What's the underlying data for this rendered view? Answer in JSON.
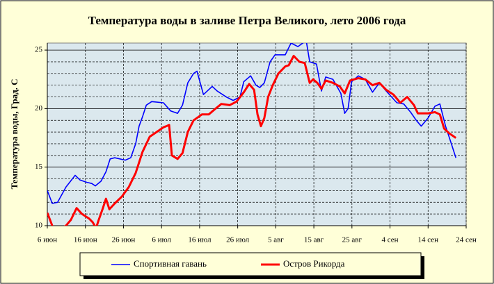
{
  "chart_data": {
    "type": "line",
    "title": "Температура воды в заливе Петра Великого,  лето 2006 года",
    "y_label": "Температура воды, Град. С",
    "xlim": [
      0,
      110
    ],
    "xticks": [
      {
        "value": 0,
        "label": "6 июн"
      },
      {
        "value": 10,
        "label": "16 июн"
      },
      {
        "value": 20,
        "label": "26 июн"
      },
      {
        "value": 30,
        "label": "6 июл"
      },
      {
        "value": 40,
        "label": "16 июл"
      },
      {
        "value": 50,
        "label": "26 июл"
      },
      {
        "value": 60,
        "label": "5 авг"
      },
      {
        "value": 70,
        "label": "15 авг"
      },
      {
        "value": 80,
        "label": "25 авг"
      },
      {
        "value": 90,
        "label": "4 сен"
      },
      {
        "value": 100,
        "label": "14 сен"
      },
      {
        "value": 110,
        "label": "24 сен"
      }
    ],
    "ylim": [
      10,
      25.6
    ],
    "yticks": [
      10,
      15,
      20,
      25
    ],
    "minor_yticks": [
      11,
      12,
      13,
      14,
      16,
      17,
      18,
      19,
      21,
      22,
      23,
      24
    ],
    "grid": true,
    "legend": "bottom",
    "series": [
      {
        "name": "Спортивная гавань",
        "color": "#0000ff",
        "x": [
          0,
          1.3,
          2.7,
          4.9,
          7.3,
          8.6,
          10.4,
          11.7,
          12.6,
          14.1,
          15.4,
          16.5,
          17.7,
          20.5,
          21.9,
          23.2,
          24.1,
          25.0,
          26.0,
          27.4,
          30.5,
          32.4,
          34.2,
          35.5,
          36.9,
          38.4,
          39.3,
          41.0,
          42.0,
          43.3,
          44.6,
          47.0,
          48.8,
          50.6,
          51.6,
          53.4,
          54.8,
          55.8,
          57.0,
          58.5,
          59.8,
          62.5,
          64.0,
          65.8,
          68.0,
          68.9,
          70.7,
          72.0,
          73.1,
          75.0,
          77.1,
          78.1,
          79.0,
          79.9,
          81.7,
          83.5,
          85.4,
          87.2,
          89.0,
          91.8,
          93.6,
          95.4,
          96.9,
          98.2,
          100.0,
          101.8,
          103.1,
          104.6,
          106.1,
          107.3
        ],
        "values": [
          13.0,
          11.9,
          12.0,
          13.3,
          14.3,
          13.9,
          13.7,
          13.6,
          13.4,
          13.8,
          14.6,
          15.7,
          15.8,
          15.6,
          15.8,
          17.0,
          18.5,
          19.3,
          20.3,
          20.6,
          20.5,
          19.8,
          19.6,
          20.3,
          22.2,
          23.0,
          23.2,
          21.2,
          21.5,
          21.9,
          21.5,
          21.0,
          20.7,
          21.0,
          22.3,
          22.8,
          22.0,
          21.8,
          22.2,
          24.0,
          24.6,
          24.6,
          25.6,
          25.3,
          25.8,
          24.0,
          23.8,
          21.5,
          22.7,
          22.5,
          21.3,
          19.6,
          20.0,
          22.3,
          22.8,
          22.5,
          21.4,
          22.2,
          21.5,
          20.5,
          20.4,
          19.7,
          19.0,
          18.5,
          19.2,
          20.2,
          20.4,
          18.5,
          17.0,
          15.8
        ]
      },
      {
        "name": "Остров Рикорда",
        "color": "#ff0000",
        "x": [
          0,
          1.3,
          2.2,
          4.9,
          6.2,
          7.7,
          9.1,
          11.0,
          11.9,
          12.8,
          13.5,
          14.6,
          15.4,
          16.3,
          17.7,
          19.6,
          21.4,
          23.2,
          25.0,
          26.9,
          28.7,
          30.5,
          32.0,
          32.7,
          34.2,
          35.5,
          36.9,
          38.4,
          40.6,
          42.4,
          44.2,
          45.7,
          47.9,
          49.7,
          51.6,
          53.0,
          54.3,
          55.2,
          56.1,
          57.0,
          58.0,
          59.2,
          60.7,
          62.5,
          63.4,
          64.7,
          66.2,
          67.6,
          68.9,
          69.8,
          70.9,
          72.0,
          73.1,
          75.0,
          76.8,
          78.1,
          79.5,
          81.7,
          83.5,
          85.4,
          87.2,
          89.0,
          90.9,
          92.7,
          94.5,
          96.3,
          97.3,
          100.0,
          101.8,
          103.1,
          104.2,
          105.5,
          107.3
        ],
        "values": [
          11.1,
          10.0,
          9.5,
          10.0,
          10.5,
          11.5,
          11.0,
          10.6,
          10.3,
          9.8,
          10.5,
          11.5,
          12.3,
          11.4,
          11.9,
          12.5,
          13.3,
          14.5,
          16.3,
          17.6,
          18.0,
          18.4,
          18.6,
          16.0,
          15.7,
          16.2,
          18.0,
          19.0,
          19.5,
          19.5,
          20.0,
          20.4,
          20.3,
          20.6,
          21.4,
          22.1,
          21.6,
          19.5,
          18.5,
          19.2,
          21.0,
          22.0,
          23.0,
          23.6,
          23.7,
          24.5,
          24.0,
          23.9,
          22.2,
          22.5,
          22.2,
          21.7,
          22.4,
          22.2,
          21.9,
          21.3,
          22.4,
          22.6,
          22.5,
          22.0,
          22.2,
          21.6,
          21.2,
          20.5,
          21.0,
          20.3,
          19.6,
          19.6,
          19.7,
          19.5,
          18.3,
          17.9,
          17.5
        ]
      }
    ]
  }
}
